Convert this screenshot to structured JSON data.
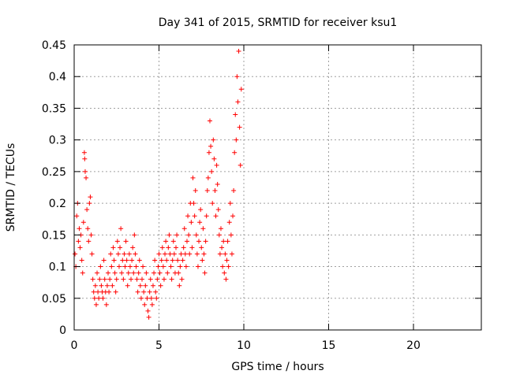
{
  "chart_data": {
    "type": "scatter",
    "title": "Day 341 of 2015, SRMTID for receiver ksu1",
    "xlabel": "GPS time / hours",
    "ylabel": "SRMTID / TECUs",
    "xlim": [
      0,
      24
    ],
    "ylim": [
      0,
      0.45
    ],
    "grid": true,
    "marker": "+",
    "color": "#ff0000",
    "x_ticks": [
      0,
      5,
      10,
      15,
      20
    ],
    "x_tick_labels": [
      "0",
      "5",
      "10",
      "15",
      "20"
    ],
    "y_ticks": [
      0,
      0.05,
      0.1,
      0.15,
      0.2,
      0.25,
      0.3,
      0.35,
      0.4,
      0.45
    ],
    "y_tick_labels": [
      "0",
      "0.05",
      "0.1",
      "0.15",
      "0.2",
      "0.25",
      "0.3",
      "0.35",
      "0.4",
      "0.45"
    ],
    "series": [
      {
        "name": "SRMTID",
        "points": [
          [
            0.05,
            0.12
          ],
          [
            0.1,
            0.1
          ],
          [
            0.15,
            0.18
          ],
          [
            0.2,
            0.2
          ],
          [
            0.25,
            0.14
          ],
          [
            0.3,
            0.16
          ],
          [
            0.35,
            0.13
          ],
          [
            0.4,
            0.15
          ],
          [
            0.45,
            0.11
          ],
          [
            0.5,
            0.09
          ],
          [
            0.55,
            0.17
          ],
          [
            0.6,
            0.28
          ],
          [
            0.62,
            0.27
          ],
          [
            0.65,
            0.25
          ],
          [
            0.7,
            0.24
          ],
          [
            0.75,
            0.19
          ],
          [
            0.8,
            0.16
          ],
          [
            0.85,
            0.14
          ],
          [
            0.9,
            0.2
          ],
          [
            0.95,
            0.21
          ],
          [
            1.0,
            0.15
          ],
          [
            1.05,
            0.12
          ],
          [
            1.1,
            0.08
          ],
          [
            1.15,
            0.06
          ],
          [
            1.2,
            0.05
          ],
          [
            1.25,
            0.07
          ],
          [
            1.3,
            0.04
          ],
          [
            1.35,
            0.09
          ],
          [
            1.4,
            0.06
          ],
          [
            1.45,
            0.05
          ],
          [
            1.5,
            0.08
          ],
          [
            1.55,
            0.1
          ],
          [
            1.6,
            0.07
          ],
          [
            1.65,
            0.06
          ],
          [
            1.7,
            0.05
          ],
          [
            1.75,
            0.11
          ],
          [
            1.8,
            0.08
          ],
          [
            1.85,
            0.06
          ],
          [
            1.9,
            0.04
          ],
          [
            1.95,
            0.07
          ],
          [
            2.0,
            0.09
          ],
          [
            2.05,
            0.06
          ],
          [
            2.1,
            0.08
          ],
          [
            2.15,
            0.12
          ],
          [
            2.2,
            0.1
          ],
          [
            2.25,
            0.07
          ],
          [
            2.3,
            0.13
          ],
          [
            2.35,
            0.11
          ],
          [
            2.4,
            0.09
          ],
          [
            2.45,
            0.06
          ],
          [
            2.5,
            0.08
          ],
          [
            2.55,
            0.14
          ],
          [
            2.6,
            0.12
          ],
          [
            2.65,
            0.1
          ],
          [
            2.7,
            0.13
          ],
          [
            2.75,
            0.16
          ],
          [
            2.8,
            0.09
          ],
          [
            2.85,
            0.11
          ],
          [
            2.9,
            0.08
          ],
          [
            2.95,
            0.12
          ],
          [
            3.0,
            0.1
          ],
          [
            3.05,
            0.14
          ],
          [
            3.1,
            0.11
          ],
          [
            3.15,
            0.07
          ],
          [
            3.2,
            0.09
          ],
          [
            3.25,
            0.12
          ],
          [
            3.3,
            0.1
          ],
          [
            3.35,
            0.08
          ],
          [
            3.4,
            0.11
          ],
          [
            3.45,
            0.13
          ],
          [
            3.5,
            0.09
          ],
          [
            3.55,
            0.15
          ],
          [
            3.6,
            0.12
          ],
          [
            3.65,
            0.1
          ],
          [
            3.7,
            0.08
          ],
          [
            3.75,
            0.06
          ],
          [
            3.8,
            0.09
          ],
          [
            3.85,
            0.11
          ],
          [
            3.9,
            0.07
          ],
          [
            3.95,
            0.05
          ],
          [
            4.0,
            0.08
          ],
          [
            4.05,
            0.1
          ],
          [
            4.1,
            0.06
          ],
          [
            4.15,
            0.04
          ],
          [
            4.2,
            0.07
          ],
          [
            4.25,
            0.09
          ],
          [
            4.3,
            0.05
          ],
          [
            4.35,
            0.03
          ],
          [
            4.4,
            0.02
          ],
          [
            4.45,
            0.06
          ],
          [
            4.5,
            0.08
          ],
          [
            4.55,
            0.05
          ],
          [
            4.6,
            0.04
          ],
          [
            4.65,
            0.07
          ],
          [
            4.7,
            0.09
          ],
          [
            4.75,
            0.11
          ],
          [
            4.8,
            0.06
          ],
          [
            4.85,
            0.05
          ],
          [
            4.9,
            0.08
          ],
          [
            4.95,
            0.1
          ],
          [
            5.0,
            0.12
          ],
          [
            5.05,
            0.09
          ],
          [
            5.1,
            0.07
          ],
          [
            5.15,
            0.11
          ],
          [
            5.2,
            0.13
          ],
          [
            5.25,
            0.1
          ],
          [
            5.3,
            0.08
          ],
          [
            5.35,
            0.12
          ],
          [
            5.4,
            0.14
          ],
          [
            5.45,
            0.11
          ],
          [
            5.5,
            0.09
          ],
          [
            5.55,
            0.13
          ],
          [
            5.6,
            0.15
          ],
          [
            5.65,
            0.12
          ],
          [
            5.7,
            0.1
          ],
          [
            5.75,
            0.08
          ],
          [
            5.8,
            0.11
          ],
          [
            5.85,
            0.14
          ],
          [
            5.9,
            0.12
          ],
          [
            5.95,
            0.09
          ],
          [
            6.0,
            0.13
          ],
          [
            6.05,
            0.15
          ],
          [
            6.1,
            0.11
          ],
          [
            6.15,
            0.09
          ],
          [
            6.2,
            0.07
          ],
          [
            6.25,
            0.1
          ],
          [
            6.3,
            0.12
          ],
          [
            6.35,
            0.08
          ],
          [
            6.4,
            0.11
          ],
          [
            6.45,
            0.13
          ],
          [
            6.5,
            0.16
          ],
          [
            6.55,
            0.12
          ],
          [
            6.6,
            0.1
          ],
          [
            6.65,
            0.14
          ],
          [
            6.7,
            0.18
          ],
          [
            6.75,
            0.15
          ],
          [
            6.8,
            0.12
          ],
          [
            6.85,
            0.2
          ],
          [
            6.9,
            0.17
          ],
          [
            6.95,
            0.13
          ],
          [
            7.0,
            0.24
          ],
          [
            7.05,
            0.2
          ],
          [
            7.1,
            0.18
          ],
          [
            7.15,
            0.22
          ],
          [
            7.2,
            0.15
          ],
          [
            7.25,
            0.12
          ],
          [
            7.3,
            0.1
          ],
          [
            7.35,
            0.14
          ],
          [
            7.4,
            0.17
          ],
          [
            7.45,
            0.19
          ],
          [
            7.5,
            0.13
          ],
          [
            7.55,
            0.11
          ],
          [
            7.6,
            0.16
          ],
          [
            7.65,
            0.12
          ],
          [
            7.7,
            0.09
          ],
          [
            7.75,
            0.14
          ],
          [
            7.8,
            0.18
          ],
          [
            7.85,
            0.22
          ],
          [
            7.9,
            0.24
          ],
          [
            7.95,
            0.28
          ],
          [
            8.0,
            0.33
          ],
          [
            8.05,
            0.29
          ],
          [
            8.1,
            0.25
          ],
          [
            8.15,
            0.2
          ],
          [
            8.2,
            0.3
          ],
          [
            8.25,
            0.27
          ],
          [
            8.3,
            0.22
          ],
          [
            8.35,
            0.18
          ],
          [
            8.4,
            0.26
          ],
          [
            8.45,
            0.23
          ],
          [
            8.5,
            0.19
          ],
          [
            8.55,
            0.15
          ],
          [
            8.6,
            0.12
          ],
          [
            8.65,
            0.16
          ],
          [
            8.7,
            0.13
          ],
          [
            8.75,
            0.1
          ],
          [
            8.8,
            0.14
          ],
          [
            8.85,
            0.09
          ],
          [
            8.9,
            0.12
          ],
          [
            8.95,
            0.08
          ],
          [
            9.0,
            0.11
          ],
          [
            9.05,
            0.14
          ],
          [
            9.1,
            0.1
          ],
          [
            9.15,
            0.17
          ],
          [
            9.2,
            0.2
          ],
          [
            9.25,
            0.15
          ],
          [
            9.3,
            0.12
          ],
          [
            9.35,
            0.18
          ],
          [
            9.4,
            0.22
          ],
          [
            9.45,
            0.28
          ],
          [
            9.5,
            0.34
          ],
          [
            9.55,
            0.3
          ],
          [
            9.6,
            0.4
          ],
          [
            9.65,
            0.36
          ],
          [
            9.7,
            0.44
          ],
          [
            9.75,
            0.32
          ],
          [
            9.8,
            0.26
          ],
          [
            9.85,
            0.38
          ]
        ]
      }
    ]
  }
}
